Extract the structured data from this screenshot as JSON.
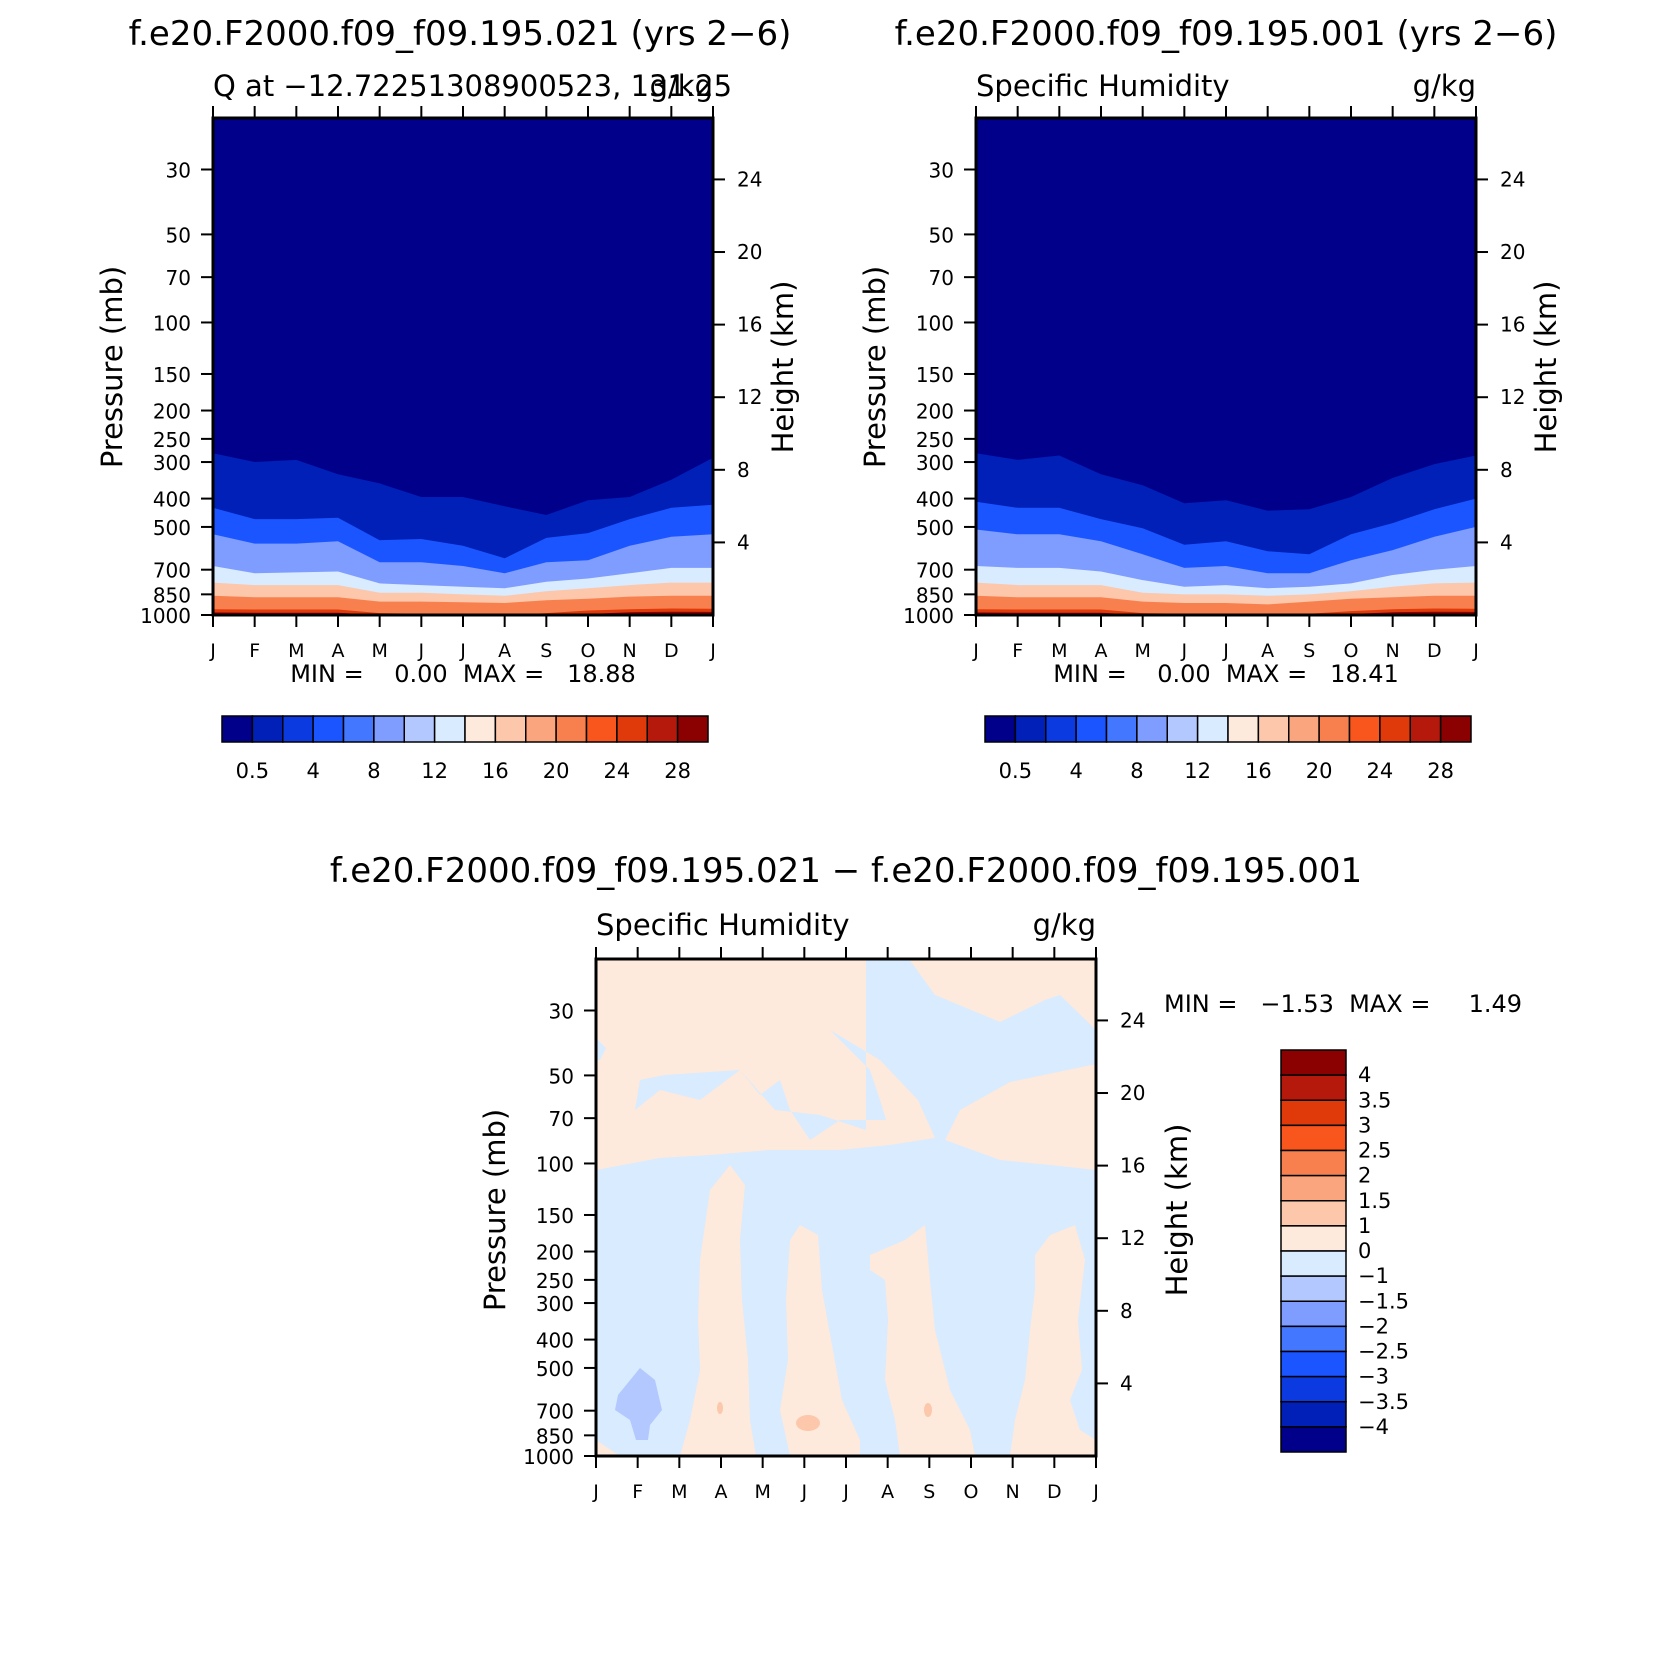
{
  "panels": [
    {
      "title": "f.e20.F2000.f09_f09.195.021 (yrs 2−6)",
      "left_label": "Q at −12.72251308900523, 131.25",
      "right_label": "g/kg",
      "ylabel": "Pressure (mb)",
      "ylabel2": "Height (km)",
      "stats": "MIN =    0.00  MAX =   18.88"
    },
    {
      "title": "f.e20.F2000.f09_f09.195.001 (yrs 2−6)",
      "left_label": "Specific Humidity",
      "right_label": "g/kg",
      "ylabel": "Pressure (mb)",
      "ylabel2": "Height (km)",
      "stats": "MIN =    0.00  MAX =   18.41"
    },
    {
      "title": "f.e20.F2000.f09_f09.195.021 − f.e20.F2000.f09_f09.195.001",
      "left_label": "Specific Humidity",
      "right_label": "g/kg",
      "ylabel": "Pressure (mb)",
      "ylabel2": "Height (km)",
      "stats": "MIN =   −1.53  MAX =     1.49"
    }
  ],
  "chart_data": [
    {
      "type": "heatmap",
      "title": "f.e20.F2000.f09_f09.195.021 (yrs 2−6)",
      "subtitle": "Q at −12.72251308900523, 131.25",
      "units": "g/kg",
      "xlabel": "",
      "ylabel": "Pressure (mb)",
      "ylabel_right": "Height (km)",
      "y_scale": "log",
      "x_ticks": [
        "J",
        "F",
        "M",
        "A",
        "M",
        "J",
        "J",
        "A",
        "S",
        "O",
        "N",
        "D",
        "J"
      ],
      "y_ticks": [
        30,
        50,
        70,
        100,
        150,
        200,
        250,
        300,
        400,
        500,
        700,
        850,
        1000
      ],
      "y2_ticks": [
        4,
        8,
        12,
        16,
        20,
        24
      ],
      "ylim": [
        20,
        1000
      ],
      "min": 0.0,
      "max": 18.88,
      "contour_levels_p_mb": {
        "0.5": [
          280,
          300,
          295,
          330,
          355,
          395,
          395,
          425,
          455,
          405,
          395,
          345,
          290
        ],
        "4": [
          430,
          470,
          470,
          465,
          555,
          550,
          580,
          640,
          545,
          525,
          470,
          430,
          420
        ],
        "8": [
          530,
          570,
          570,
          560,
          660,
          660,
          680,
          720,
          660,
          650,
          580,
          540,
          530
        ],
        "12": [
          680,
          720,
          715,
          710,
          780,
          790,
          800,
          810,
          770,
          750,
          720,
          690,
          690
        ],
        "16": [
          775,
          790,
          790,
          790,
          840,
          840,
          850,
          860,
          830,
          810,
          790,
          775,
          775
        ],
        "20": [
          860,
          870,
          870,
          870,
          900,
          900,
          905,
          910,
          890,
          880,
          865,
          860,
          860
        ],
        "24": [
          955,
          958,
          958,
          958,
          985,
          990,
          995,
          1000,
          985,
          965,
          955,
          950,
          952
        ],
        "28": [
          980,
          982,
          982,
          982,
          1000,
          1000,
          1000,
          1000,
          1000,
          992,
          978,
          975,
          976
        ]
      },
      "colorbar": {
        "labels": [
          "0.5",
          "4",
          "8",
          "12",
          "16",
          "20",
          "24",
          "28"
        ],
        "colors": [
          "#00008b",
          "#0020b8",
          "#0a3ae0",
          "#1a55ff",
          "#4477ff",
          "#7f9cff",
          "#b2c8ff",
          "#d8ebff",
          "#fdeadc",
          "#fcc7aa",
          "#fba57e",
          "#f8804f",
          "#f9561d",
          "#e03a0b",
          "#b5190b",
          "#8b0000"
        ]
      }
    },
    {
      "type": "heatmap",
      "title": "f.e20.F2000.f09_f09.195.001 (yrs 2−6)",
      "subtitle": "Specific Humidity",
      "units": "g/kg",
      "xlabel": "",
      "ylabel": "Pressure (mb)",
      "ylabel_right": "Height (km)",
      "y_scale": "log",
      "x_ticks": [
        "J",
        "F",
        "M",
        "A",
        "M",
        "J",
        "J",
        "A",
        "S",
        "O",
        "N",
        "D",
        "J"
      ],
      "y_ticks": [
        30,
        50,
        70,
        100,
        150,
        200,
        250,
        300,
        400,
        500,
        700,
        850,
        1000
      ],
      "y2_ticks": [
        4,
        8,
        12,
        16,
        20,
        24
      ],
      "ylim": [
        20,
        1000
      ],
      "min": 0.0,
      "max": 18.41,
      "contour_levels_p_mb": {
        "0.5": [
          280,
          295,
          285,
          330,
          360,
          415,
          405,
          440,
          435,
          395,
          340,
          305,
          285
        ],
        "4": [
          410,
          430,
          430,
          470,
          505,
          575,
          560,
          605,
          620,
          530,
          485,
          435,
          400
        ],
        "8": [
          510,
          530,
          530,
          560,
          620,
          690,
          680,
          720,
          720,
          650,
          600,
          540,
          500
        ],
        "12": [
          680,
          690,
          690,
          710,
          760,
          800,
          790,
          810,
          800,
          780,
          730,
          700,
          680
        ],
        "16": [
          775,
          790,
          790,
          790,
          840,
          850,
          850,
          860,
          850,
          830,
          800,
          780,
          775
        ],
        "20": [
          860,
          870,
          870,
          870,
          900,
          910,
          910,
          920,
          900,
          880,
          870,
          860,
          860
        ],
        "24": [
          955,
          958,
          958,
          958,
          985,
          990,
          995,
          1000,
          990,
          970,
          955,
          950,
          952
        ],
        "28": [
          980,
          982,
          982,
          982,
          1000,
          1000,
          1000,
          1000,
          1000,
          992,
          978,
          975,
          976
        ]
      },
      "colorbar": {
        "labels": [
          "0.5",
          "4",
          "8",
          "12",
          "16",
          "20",
          "24",
          "28"
        ],
        "colors": [
          "#00008b",
          "#0020b8",
          "#0a3ae0",
          "#1a55ff",
          "#4477ff",
          "#7f9cff",
          "#b2c8ff",
          "#d8ebff",
          "#fdeadc",
          "#fcc7aa",
          "#fba57e",
          "#f8804f",
          "#f9561d",
          "#e03a0b",
          "#b5190b",
          "#8b0000"
        ]
      }
    },
    {
      "type": "heatmap",
      "title": "f.e20.F2000.f09_f09.195.021 − f.e20.F2000.f09_f09.195.001",
      "subtitle": "Specific Humidity",
      "units": "g/kg",
      "xlabel": "",
      "ylabel": "Pressure (mb)",
      "ylabel_right": "Height (km)",
      "y_scale": "log",
      "x_ticks": [
        "J",
        "F",
        "M",
        "A",
        "M",
        "J",
        "J",
        "A",
        "S",
        "O",
        "N",
        "D",
        "J"
      ],
      "y_ticks": [
        30,
        50,
        70,
        100,
        150,
        200,
        250,
        300,
        400,
        500,
        700,
        850,
        1000
      ],
      "y2_ticks": [
        4,
        8,
        12,
        16,
        20,
        24
      ],
      "ylim": [
        20,
        1000
      ],
      "min": -1.53,
      "max": 1.49,
      "colorbar": {
        "labels": [
          "4",
          "3.5",
          "3",
          "2.5",
          "2",
          "1.5",
          "1",
          "0",
          "−1",
          "−1.5",
          "−2",
          "−2.5",
          "−3",
          "−3.5",
          "−4"
        ],
        "colors": [
          "#8b0000",
          "#b5190b",
          "#e03a0b",
          "#f9561d",
          "#f8804f",
          "#fba57e",
          "#fcc7aa",
          "#fdeadc",
          "#d8ebff",
          "#b2c8ff",
          "#7f9cff",
          "#4477ff",
          "#1a55ff",
          "#0a3ae0",
          "#0020b8",
          "#00008b"
        ]
      },
      "background_value_sign": "positive",
      "negative_regions_note": "Mostly near-zero (±0–1 g/kg) with alternating positive/negative vertical bands; a small −1 to −1.5 region near F at 500–850 mb."
    }
  ]
}
